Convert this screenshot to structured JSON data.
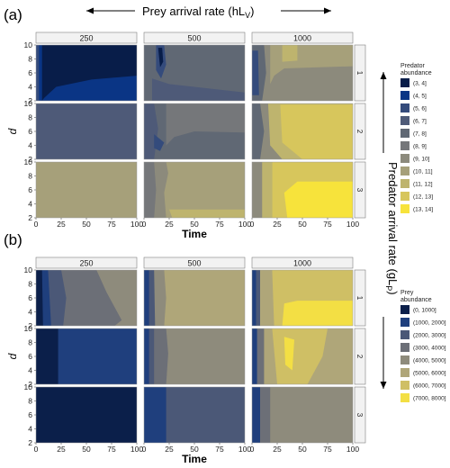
{
  "header": {
    "top_label": "Prey arrival rate (hL",
    "top_label_sub": "V",
    "top_label_close": ")",
    "right_label": "Predator arrival rate (gL",
    "right_label_sub": "P",
    "right_label_close": ")"
  },
  "colors": {
    "navy_dark": "#0b1f4a",
    "navy_bright": "#0d3b8c",
    "gray_blue": "#5c6b86",
    "mid_gray": "#7a7f86",
    "olive": "#a39f7f",
    "khaki": "#c9bf6e",
    "yellow": "#efd84d",
    "bright_yellow": "#ffe92e",
    "strip_bg": "#f2f2f2",
    "strip_border": "#7f7f7f"
  },
  "chart_data": [
    {
      "type": "heatmap",
      "panel_label": "(a)",
      "column_facets": [
        "250",
        "500",
        "1000"
      ],
      "row_facets": [
        "1",
        "2",
        "3"
      ],
      "xlabel": "Time",
      "ylabel": "d",
      "xlim": [
        0,
        100
      ],
      "ylim": [
        2,
        10
      ],
      "x_ticks": [
        "0",
        "25",
        "50",
        "75",
        "100"
      ],
      "y_ticks": [
        "2",
        "4",
        "6",
        "8",
        "10"
      ],
      "legend_title": [
        "Predator",
        "abundance"
      ],
      "legend": [
        {
          "label": "(3, 4]",
          "color": "#081d49"
        },
        {
          "label": "(4, 5]",
          "color": "#0a3585"
        },
        {
          "label": "(5, 6]",
          "color": "#344b7c"
        },
        {
          "label": "(6, 7]",
          "color": "#4e5a78"
        },
        {
          "label": "(7, 8]",
          "color": "#606874"
        },
        {
          "label": "(8, 9]",
          "color": "#75777a"
        },
        {
          "label": "(9, 10]",
          "color": "#8c8a7c"
        },
        {
          "label": "(10, 11]",
          "color": "#a6a07a"
        },
        {
          "label": "(11, 12]",
          "color": "#beb46e"
        },
        {
          "label": "(12, 13]",
          "color": "#d7c65c"
        },
        {
          "label": "(13, 14]",
          "color": "#f7e33b"
        }
      ]
    },
    {
      "type": "heatmap",
      "panel_label": "(b)",
      "column_facets": [
        "250",
        "500",
        "1000"
      ],
      "row_facets": [
        "1",
        "2",
        "3"
      ],
      "xlabel": "Time",
      "ylabel": "d",
      "xlim": [
        0,
        100
      ],
      "ylim": [
        2,
        10
      ],
      "x_ticks": [
        "0",
        "25",
        "50",
        "75",
        "100"
      ],
      "y_ticks": [
        "2",
        "4",
        "6",
        "8",
        "10"
      ],
      "legend_title": [
        "Prey",
        "abundance"
      ],
      "legend": [
        {
          "label": "(0, 1000]",
          "color": "#0b1f4a"
        },
        {
          "label": "(1000, 2000]",
          "color": "#1f3f7d"
        },
        {
          "label": "(2000, 3000]",
          "color": "#4b5877"
        },
        {
          "label": "(3000, 4000]",
          "color": "#6c6f77"
        },
        {
          "label": "(4000, 5000]",
          "color": "#8e8b7c"
        },
        {
          "label": "(5000, 6000]",
          "color": "#afa679"
        },
        {
          "label": "(6000, 7000]",
          "color": "#cfbf65"
        },
        {
          "label": "(7000, 8000]",
          "color": "#f3df44"
        }
      ]
    }
  ]
}
